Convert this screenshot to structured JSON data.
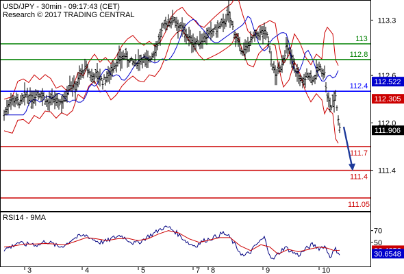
{
  "header": {
    "line1": "USD/JPY - 30min - 09:17:43 (CET)",
    "line2": "Research © 2017 TRADING CENTRAL"
  },
  "colors": {
    "price": "#000000",
    "bollinger": "#cc0000",
    "ma_blue": "#0000cc",
    "support": "#cc0000",
    "resistance": "#008000",
    "pivot": "#0000ff",
    "arrow": "#1e3a9a",
    "rsi": "#000080",
    "rsi_ma": "#cc0000",
    "badge_blue": "#0000cc",
    "badge_red": "#cc0000",
    "badge_black": "#000000"
  },
  "chart_data": [
    {
      "type": "line",
      "series_kind": "ohlc-bars",
      "ylim": [
        110.92,
        113.52
      ],
      "y_ticks": [
        "113.3",
        "112.6",
        "112.0",
        "111.4"
      ],
      "y_tick_values": [
        113.3,
        112.6,
        112.0,
        111.4
      ],
      "x_ticks": [
        "3",
        "4",
        "5",
        "7",
        "8",
        "9",
        "10"
      ],
      "levels": [
        {
          "label": "113",
          "value": 113.0,
          "role": "resistance"
        },
        {
          "label": "112.8",
          "value": 112.8,
          "role": "resistance"
        },
        {
          "label": "112.4",
          "value": 112.4,
          "role": "pivot"
        },
        {
          "label": "111.7",
          "value": 111.7,
          "role": "support"
        },
        {
          "label": "111.4",
          "value": 111.4,
          "role": "support"
        },
        {
          "label": "111.05",
          "value": 111.05,
          "role": "support"
        }
      ],
      "badges": [
        {
          "label": "112.522",
          "value": 112.522,
          "color": "blue"
        },
        {
          "label": "112.305",
          "value": 112.305,
          "color": "red"
        },
        {
          "label": "111.906",
          "value": 111.906,
          "color": "black"
        }
      ],
      "price_path": [
        [
          0,
          112.1
        ],
        [
          8,
          112.28
        ],
        [
          16,
          112.3
        ],
        [
          24,
          112.25
        ],
        [
          32,
          112.35
        ],
        [
          40,
          112.3
        ],
        [
          48,
          112.38
        ],
        [
          56,
          112.35
        ],
        [
          64,
          112.25
        ],
        [
          72,
          112.3
        ],
        [
          80,
          112.25
        ],
        [
          88,
          112.3
        ],
        [
          96,
          112.5
        ],
        [
          104,
          112.45
        ],
        [
          112,
          112.62
        ],
        [
          120,
          112.7
        ],
        [
          128,
          112.58
        ],
        [
          136,
          112.62
        ],
        [
          144,
          112.52
        ],
        [
          152,
          112.6
        ],
        [
          160,
          112.72
        ],
        [
          168,
          112.8
        ],
        [
          176,
          112.85
        ],
        [
          184,
          112.78
        ],
        [
          192,
          112.75
        ],
        [
          200,
          112.82
        ],
        [
          208,
          112.78
        ],
        [
          216,
          112.85
        ],
        [
          224,
          113.0
        ],
        [
          232,
          113.2
        ],
        [
          240,
          113.28
        ],
        [
          248,
          113.32
        ],
        [
          256,
          113.22
        ],
        [
          264,
          113.15
        ],
        [
          272,
          113.05
        ],
        [
          280,
          113.0
        ],
        [
          288,
          113.05
        ],
        [
          296,
          113.1
        ],
        [
          304,
          113.15
        ],
        [
          312,
          113.2
        ],
        [
          320,
          113.25
        ],
        [
          328,
          113.38
        ],
        [
          336,
          113.15
        ],
        [
          344,
          112.95
        ],
        [
          352,
          112.9
        ],
        [
          360,
          113.05
        ],
        [
          368,
          113.1
        ],
        [
          376,
          113.15
        ],
        [
          384,
          113.12
        ],
        [
          390,
          112.8
        ],
        [
          396,
          112.6
        ],
        [
          404,
          112.7
        ],
        [
          412,
          112.95
        ],
        [
          420,
          112.82
        ],
        [
          428,
          112.62
        ],
        [
          436,
          112.5
        ],
        [
          444,
          112.62
        ],
        [
          452,
          112.55
        ],
        [
          460,
          112.7
        ],
        [
          468,
          112.62
        ],
        [
          472,
          112.3
        ],
        [
          478,
          112.2
        ],
        [
          484,
          112.35
        ],
        [
          490,
          111.92
        ]
      ],
      "projection": {
        "from": [
          496,
          111.95
        ],
        "to": [
          508,
          111.4
        ]
      }
    },
    {
      "type": "line",
      "title": "RSI14 - 9MA",
      "ylim": [
        10,
        100
      ],
      "y_ticks": [
        "70",
        "50"
      ],
      "y_tick_values": [
        70,
        50
      ],
      "badges": [
        {
          "label": "36.4252",
          "value": 36.4252,
          "color": "red"
        },
        {
          "label": "30.6548",
          "value": 30.6548,
          "color": "blue"
        }
      ],
      "rsi": [
        [
          0,
          38
        ],
        [
          10,
          42
        ],
        [
          20,
          50
        ],
        [
          30,
          46
        ],
        [
          40,
          48
        ],
        [
          50,
          45
        ],
        [
          60,
          52
        ],
        [
          70,
          48
        ],
        [
          80,
          42
        ],
        [
          90,
          46
        ],
        [
          100,
          56
        ],
        [
          110,
          60
        ],
        [
          120,
          62
        ],
        [
          130,
          55
        ],
        [
          140,
          50
        ],
        [
          150,
          52
        ],
        [
          160,
          58
        ],
        [
          170,
          62
        ],
        [
          180,
          55
        ],
        [
          190,
          48
        ],
        [
          200,
          52
        ],
        [
          210,
          60
        ],
        [
          220,
          66
        ],
        [
          230,
          74
        ],
        [
          240,
          76
        ],
        [
          250,
          68
        ],
        [
          260,
          58
        ],
        [
          270,
          48
        ],
        [
          280,
          44
        ],
        [
          290,
          52
        ],
        [
          300,
          56
        ],
        [
          310,
          60
        ],
        [
          320,
          66
        ],
        [
          330,
          58
        ],
        [
          340,
          40
        ],
        [
          350,
          26
        ],
        [
          360,
          34
        ],
        [
          370,
          48
        ],
        [
          380,
          58
        ],
        [
          386,
          36
        ],
        [
          392,
          20
        ],
        [
          400,
          30
        ],
        [
          410,
          42
        ],
        [
          420,
          34
        ],
        [
          430,
          28
        ],
        [
          440,
          38
        ],
        [
          450,
          46
        ],
        [
          460,
          40
        ],
        [
          468,
          44
        ],
        [
          476,
          26
        ],
        [
          484,
          38
        ],
        [
          490,
          30.65
        ]
      ],
      "rsi_ma": [
        [
          0,
          42
        ],
        [
          15,
          44
        ],
        [
          30,
          47
        ],
        [
          45,
          47
        ],
        [
          60,
          48
        ],
        [
          75,
          47
        ],
        [
          90,
          46
        ],
        [
          105,
          52
        ],
        [
          120,
          58
        ],
        [
          135,
          56
        ],
        [
          150,
          53
        ],
        [
          165,
          56
        ],
        [
          180,
          57
        ],
        [
          195,
          53
        ],
        [
          210,
          56
        ],
        [
          225,
          64
        ],
        [
          240,
          70
        ],
        [
          255,
          66
        ],
        [
          270,
          56
        ],
        [
          285,
          50
        ],
        [
          300,
          54
        ],
        [
          315,
          58
        ],
        [
          330,
          58
        ],
        [
          345,
          44
        ],
        [
          360,
          36
        ],
        [
          375,
          46
        ],
        [
          388,
          42
        ],
        [
          400,
          30
        ],
        [
          415,
          38
        ],
        [
          430,
          34
        ],
        [
          445,
          38
        ],
        [
          460,
          42
        ],
        [
          472,
          40
        ],
        [
          482,
          36
        ],
        [
          490,
          36.43
        ]
      ]
    }
  ]
}
